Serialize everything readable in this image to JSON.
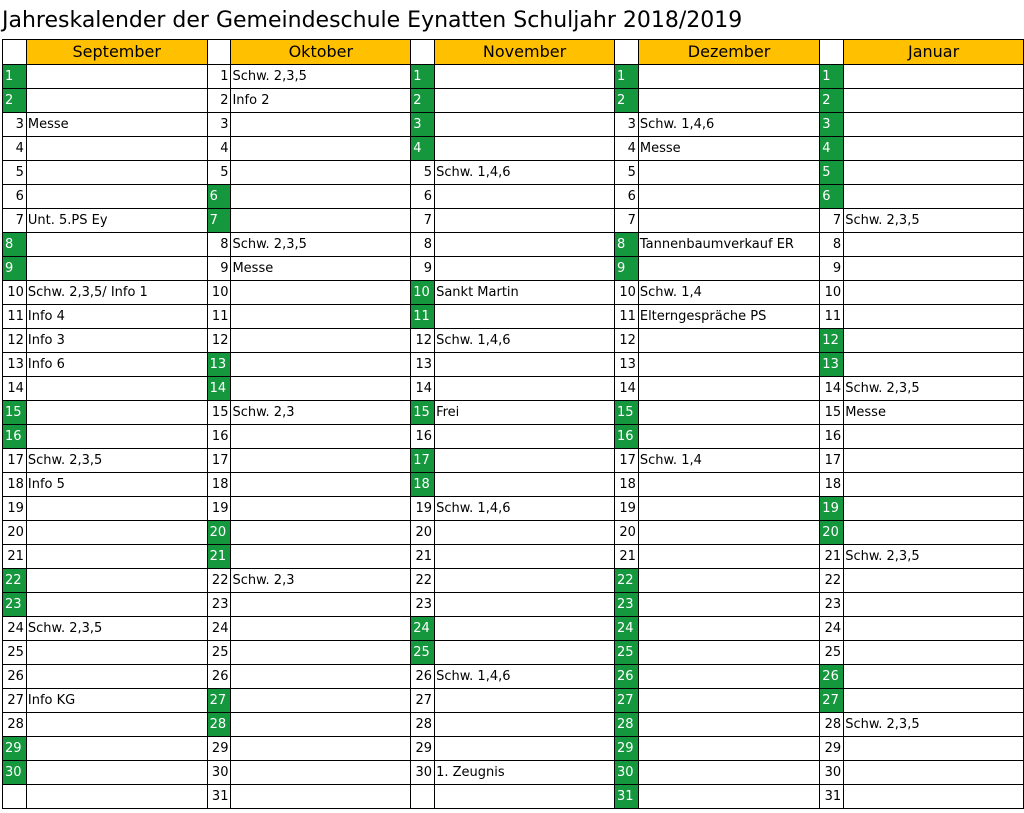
{
  "title": "Jahreskalender der Gemeindeschule Eynatten  Schuljahr 2018/2019",
  "colors": {
    "header": "#ffc000",
    "weekend": "#15973d"
  },
  "months": [
    {
      "name": "September",
      "weekend_days": [
        1,
        2,
        8,
        9,
        15,
        16,
        22,
        23,
        29,
        30
      ],
      "days": 30,
      "events": {
        "3": "Messe",
        "7": "Unt. 5.PS Ey",
        "10": "Schw. 2,3,5/ Info 1",
        "11": "Info 4",
        "12": "Info 3",
        "13": "Info 6",
        "17": "Schw. 2,3,5",
        "18": "Info 5",
        "24": "Schw. 2,3,5",
        "27": "Info KG"
      }
    },
    {
      "name": "Oktober",
      "weekend_days": [
        6,
        7,
        13,
        14,
        20,
        21,
        27,
        28
      ],
      "days": 31,
      "events": {
        "1": "Schw. 2,3,5",
        "2": "Info 2",
        "8": "Schw. 2,3,5",
        "9": "Messe",
        "15": "Schw. 2,3",
        "22": "Schw. 2,3"
      }
    },
    {
      "name": "November",
      "weekend_days": [
        1,
        2,
        3,
        4,
        10,
        11,
        15,
        17,
        18,
        24,
        25
      ],
      "days": 30,
      "events": {
        "5": "Schw. 1,4,6",
        "10": "Sankt Martin",
        "12": "Schw. 1,4,6",
        "15": "Frei",
        "19": "Schw. 1,4,6",
        "26": "Schw. 1,4,6",
        "30": "1. Zeugnis"
      }
    },
    {
      "name": "Dezember",
      "weekend_days": [
        1,
        2,
        8,
        9,
        15,
        16,
        22,
        23,
        24,
        25,
        26,
        27,
        28,
        29,
        30,
        31
      ],
      "days": 31,
      "events": {
        "3": "Schw. 1,4,6",
        "4": "Messe",
        "8": "Tannenbaumverkauf ER",
        "10": "Schw. 1,4",
        "11": "Elterngespräche PS",
        "17": "Schw. 1,4"
      }
    },
    {
      "name": "Januar",
      "weekend_days": [
        1,
        2,
        3,
        4,
        5,
        6,
        12,
        13,
        19,
        20,
        26,
        27
      ],
      "days": 31,
      "events": {
        "7": "Schw. 2,3,5",
        "14": "Schw. 2,3,5",
        "15": "Messe",
        "21": "Schw. 2,3,5",
        "28": "Schw. 2,3,5"
      }
    }
  ]
}
